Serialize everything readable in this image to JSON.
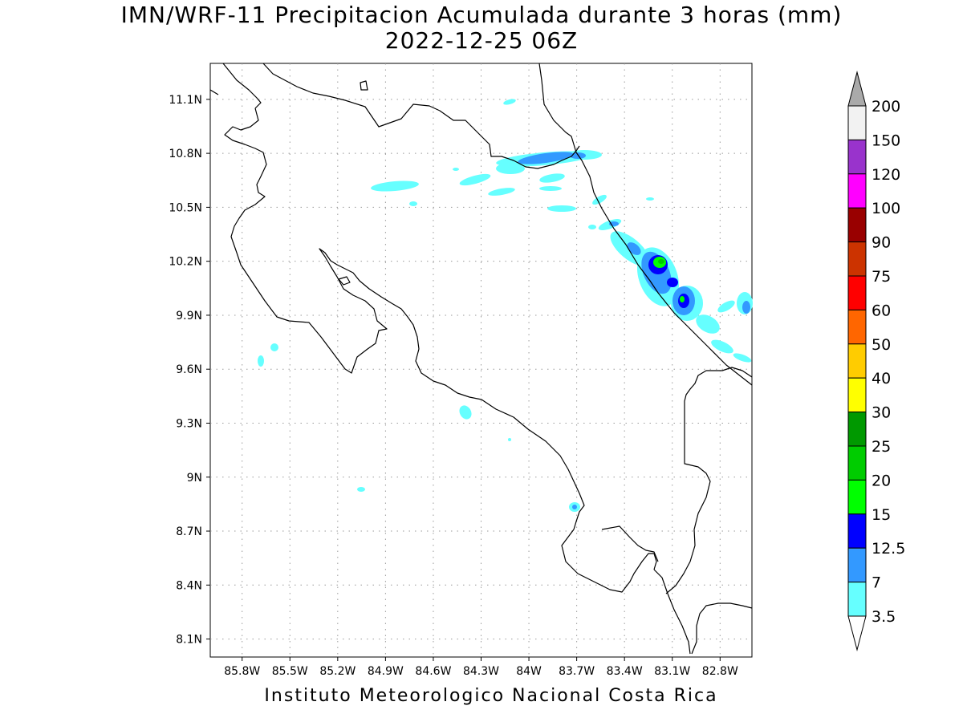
{
  "title": {
    "line1": "IMN/WRF-11 Precipitacion Acumulada durante 3 horas (mm)",
    "line2": "2022-12-25 06Z"
  },
  "footer": "Instituto Meteorologico Nacional Costa Rica",
  "map": {
    "lon_range": [
      -86.0,
      -82.6
    ],
    "lat_range": [
      8.0,
      11.3
    ],
    "x_ticks": [
      {
        "value": -85.8,
        "label": "85.8W"
      },
      {
        "value": -85.5,
        "label": "85.5W"
      },
      {
        "value": -85.2,
        "label": "85.2W"
      },
      {
        "value": -84.9,
        "label": "84.9W"
      },
      {
        "value": -84.6,
        "label": "84.6W"
      },
      {
        "value": -84.3,
        "label": "84.3W"
      },
      {
        "value": -84.0,
        "label": "84W"
      },
      {
        "value": -83.7,
        "label": "83.7W"
      },
      {
        "value": -83.4,
        "label": "83.4W"
      },
      {
        "value": -83.1,
        "label": "83.1W"
      },
      {
        "value": -82.8,
        "label": "82.8W"
      }
    ],
    "y_ticks": [
      {
        "value": 11.1,
        "label": "11.1N"
      },
      {
        "value": 10.8,
        "label": "10.8N"
      },
      {
        "value": 10.5,
        "label": "10.5N"
      },
      {
        "value": 10.2,
        "label": "10.2N"
      },
      {
        "value": 9.9,
        "label": "9.9N"
      },
      {
        "value": 9.6,
        "label": "9.6N"
      },
      {
        "value": 9.3,
        "label": "9.3N"
      },
      {
        "value": 9.0,
        "label": "9N"
      },
      {
        "value": 8.7,
        "label": "8.7N"
      },
      {
        "value": 8.4,
        "label": "8.4N"
      },
      {
        "value": 8.1,
        "label": "8.1N"
      }
    ],
    "grid": true
  },
  "legend": {
    "levels": [
      {
        "label": "3.5",
        "color": "#66ffff"
      },
      {
        "label": "7",
        "color": "#3399ff"
      },
      {
        "label": "12.5",
        "color": "#0000ff"
      },
      {
        "label": "15",
        "color": "#00ff00"
      },
      {
        "label": "20",
        "color": "#00cc00"
      },
      {
        "label": "25",
        "color": "#009900"
      },
      {
        "label": "30",
        "color": "#ffff00"
      },
      {
        "label": "40",
        "color": "#ffcc00"
      },
      {
        "label": "50",
        "color": "#ff6600"
      },
      {
        "label": "60",
        "color": "#ff0000"
      },
      {
        "label": "75",
        "color": "#cc3300"
      },
      {
        "label": "90",
        "color": "#990000"
      },
      {
        "label": "100",
        "color": "#ff00ff"
      },
      {
        "label": "120",
        "color": "#9933cc"
      },
      {
        "label": "150",
        "color": "#f2f2f2"
      },
      {
        "label": "200",
        "color": "#aaaaaa"
      }
    ],
    "under_color": "#ffffff",
    "over_color": "#aaaaaa"
  },
  "colors": {
    "light_cyan": "#66ffff",
    "medium_blue": "#3399ff",
    "blue": "#0000ff",
    "green": "#00ff00",
    "dark_green": "#00cc00"
  }
}
